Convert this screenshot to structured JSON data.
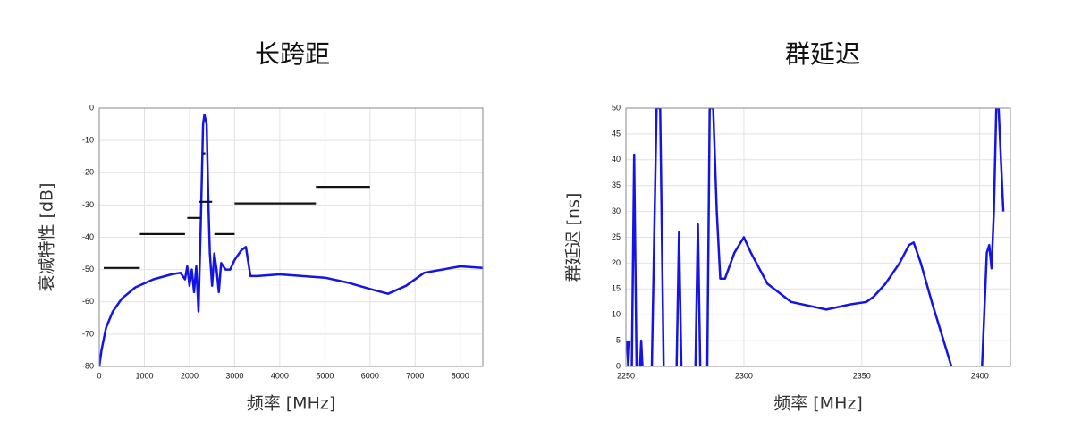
{
  "chart_data": [
    {
      "type": "line",
      "title": "长跨距",
      "xlabel": "频率 [MHz]",
      "ylabel": "衰减特性 [dB]",
      "xlim": [
        0,
        8500
      ],
      "ylim": [
        -80,
        0
      ],
      "xticks": [
        0,
        1000,
        2000,
        3000,
        4000,
        5000,
        6000,
        7000,
        8000
      ],
      "yticks": [
        0,
        -10,
        -20,
        -30,
        -40,
        -50,
        -60,
        -70,
        -80
      ],
      "grid": true,
      "series": [
        {
          "color": "#1414e6",
          "x": [
            0,
            50,
            150,
            300,
            500,
            800,
            1200,
            1600,
            1800,
            1900,
            1950,
            2000,
            2050,
            2100,
            2150,
            2200,
            2250,
            2300,
            2330,
            2380,
            2420,
            2450,
            2500,
            2550,
            2600,
            2650,
            2700,
            2800,
            2900,
            3000,
            3150,
            3250,
            3350,
            3500,
            4000,
            5000,
            5500,
            6000,
            6400,
            6800,
            7200,
            7600,
            8000,
            8500
          ],
          "values": [
            -80,
            -75,
            -68,
            -63,
            -59,
            -55.5,
            -53,
            -51.5,
            -51,
            -53,
            -49,
            -55,
            -50,
            -57,
            -49,
            -63,
            -35,
            -5,
            -2,
            -5,
            -30,
            -45,
            -55,
            -45,
            -50,
            -57,
            -48,
            -50,
            -50,
            -47,
            -44,
            -43,
            -52,
            -52,
            -51.5,
            -52.5,
            -54,
            -56,
            -57.5,
            -55,
            -51,
            -50,
            -49,
            -49.5
          ]
        },
        {
          "color": "#111111",
          "x": [
            100,
            900,
            null,
            900,
            1900,
            null,
            1950,
            2250,
            null,
            2200,
            2500,
            null,
            2300,
            2350,
            null,
            2550,
            3000,
            null,
            3000,
            4800,
            null,
            4800,
            6000
          ],
          "values": [
            -49.5,
            -49.5,
            null,
            -39,
            -39,
            null,
            -34,
            -34,
            null,
            -29,
            -29,
            null,
            -14,
            -14,
            null,
            -39,
            -39,
            null,
            -29.5,
            -29.5,
            null,
            -24.4,
            -24.4
          ]
        }
      ]
    },
    {
      "type": "line",
      "title": "群延迟",
      "xlabel": "频率 [MHz]",
      "ylabel": "群延迟 [ns]",
      "xlim": [
        2250,
        2413
      ],
      "ylim": [
        0,
        50
      ],
      "xticks": [
        2250,
        2300,
        2350,
        2400
      ],
      "yticks": [
        0,
        5,
        10,
        15,
        20,
        25,
        30,
        35,
        40,
        45,
        50
      ],
      "grid": true,
      "series": [
        {
          "color": "#1414e6",
          "x": [
            2250.5,
            2251,
            2251.5,
            null,
            2252.5,
            2253.5,
            2254.5,
            null,
            2256,
            2256.5,
            2257,
            null,
            2261,
            2263,
            2264.5,
            2266,
            null,
            2271.5,
            2272.5,
            2273.5,
            null,
            2279.5,
            2280.5,
            2281.5,
            null,
            2284.5,
            2285.5,
            2287,
            2288.5,
            2290,
            2292,
            2296,
            2300,
            2303,
            2310,
            2320,
            2335,
            2345,
            2352,
            2355,
            2360,
            2366,
            2370,
            2372,
            2375,
            2380,
            2386,
            2388,
            null,
            2401,
            2403,
            2404,
            2405,
            2406,
            2407,
            2408,
            2409,
            2410
          ],
          "values": [
            5,
            0,
            5,
            null,
            0,
            41,
            0,
            null,
            0,
            5,
            0,
            null,
            0,
            50,
            50,
            0,
            null,
            0,
            26,
            0,
            null,
            0,
            27.5,
            0,
            null,
            0,
            50,
            50,
            30,
            17,
            17,
            22,
            25,
            22,
            16,
            12.5,
            11,
            12,
            12.5,
            13.5,
            16,
            20,
            23.5,
            24,
            20,
            12,
            3,
            0,
            null,
            0,
            22,
            23.5,
            19,
            30,
            50,
            50,
            40,
            30
          ]
        }
      ]
    }
  ]
}
